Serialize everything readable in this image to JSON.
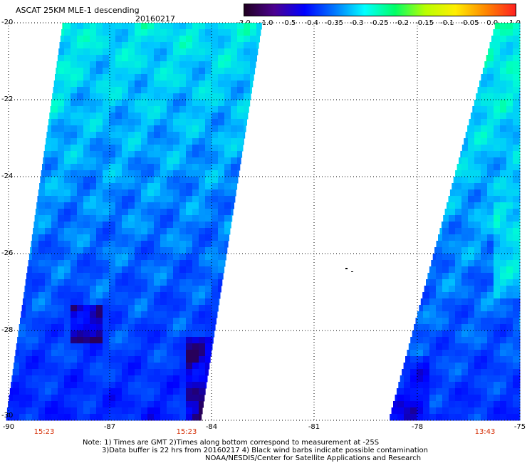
{
  "header": {
    "title": "ASCAT 25KM MLE-1 descending",
    "date": "20160217"
  },
  "colorbar": {
    "stops": [
      "#200020",
      "#4b0090",
      "#0000ff",
      "#0077ff",
      "#00ffff",
      "#00ff66",
      "#b8ff00",
      "#ffee00",
      "#ff8800",
      "#ff2020"
    ],
    "labels": [
      "-3.0",
      "-1.0",
      "-0.5",
      "-0.4",
      "-0.35",
      "-0.3",
      "-0.25",
      "-0.2",
      "-0.15",
      "-0.1",
      "-0.05",
      "0.0",
      "1.0"
    ]
  },
  "axes": {
    "x_labels": [
      "-90",
      "-87",
      "-84",
      "-81",
      "-78",
      "-75"
    ],
    "y_labels": [
      "-20",
      "-22",
      "-24",
      "-26",
      "-28",
      "-30"
    ]
  },
  "swath_times": [
    "15:23",
    "15:23",
    "13:43"
  ],
  "notes": {
    "line1": "Note: 1) Times are GMT 2)Times along bottom correspond to measurement at -25S",
    "line2": "3)Data buffer is 22 hrs from 20160217 4) Black wind barbs indicate possible contamination",
    "line3": "NOAA/NESDIS/Center for Satellite Applications and Research"
  },
  "colors": {
    "time_label": "#d42a00",
    "no_data": "#ffffff",
    "grid_dots": "#000000"
  }
}
